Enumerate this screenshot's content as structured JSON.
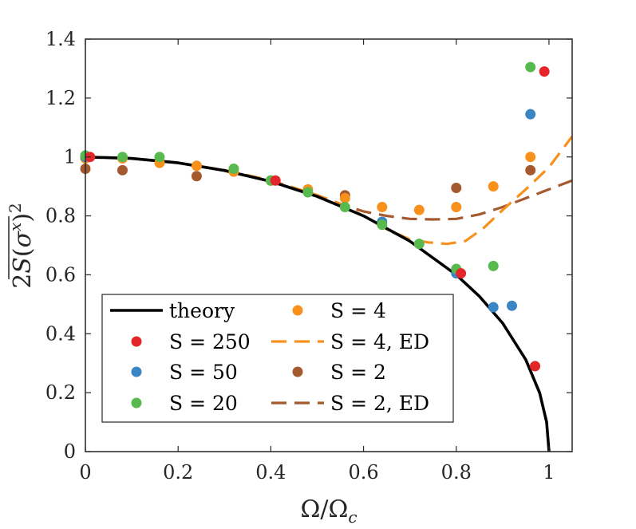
{
  "chart_data": {
    "type": "scatter",
    "xlabel": "Ω/Ω_c",
    "ylabel": "2S(σ^x)^2",
    "xlim": [
      0,
      1.05
    ],
    "ylim": [
      0,
      1.4
    ],
    "xticks": [
      0,
      0.2,
      0.4,
      0.6,
      0.8,
      1
    ],
    "xtick_labels": [
      "0",
      "0.2",
      "0.4",
      "0.6",
      "0.8",
      "1"
    ],
    "yticks": [
      0,
      0.2,
      0.4,
      0.6,
      0.8,
      1,
      1.2,
      1.4
    ],
    "ytick_labels": [
      "0",
      "0.2",
      "0.4",
      "0.6",
      "0.8",
      "1",
      "1.2",
      "1.4"
    ],
    "grid": false,
    "legend_position": "bottom-left",
    "series": [
      {
        "name": "theory",
        "label": "theory",
        "kind": "line",
        "style": "solid",
        "color": "#000000",
        "x": [
          0,
          0.1,
          0.2,
          0.3,
          0.4,
          0.5,
          0.6,
          0.7,
          0.8,
          0.85,
          0.9,
          0.95,
          0.98,
          0.995,
          1.0
        ],
        "y": [
          1,
          0.995,
          0.98,
          0.954,
          0.917,
          0.866,
          0.8,
          0.714,
          0.6,
          0.527,
          0.436,
          0.312,
          0.199,
          0.1,
          0
        ]
      },
      {
        "name": "S=250",
        "label": "S = 250",
        "kind": "scatter",
        "color": "#e4262a",
        "x": [
          0.01,
          0.41,
          0.81,
          0.97,
          0.99
        ],
        "y": [
          1.0,
          0.92,
          0.605,
          0.29,
          1.29
        ]
      },
      {
        "name": "S=50",
        "label": "S = 50",
        "kind": "scatter",
        "color": "#3a86c4",
        "x": [
          0.0,
          0.64,
          0.8,
          0.88,
          0.92,
          0.96
        ],
        "y": [
          1.0,
          0.78,
          0.605,
          0.49,
          0.495,
          1.145
        ]
      },
      {
        "name": "S=20",
        "label": "S = 20",
        "kind": "scatter",
        "color": "#58b94e",
        "x": [
          0.0,
          0.08,
          0.16,
          0.32,
          0.4,
          0.48,
          0.56,
          0.64,
          0.72,
          0.8,
          0.88,
          0.96
        ],
        "y": [
          1.005,
          1.0,
          1.0,
          0.96,
          0.92,
          0.88,
          0.83,
          0.77,
          0.705,
          0.62,
          0.63,
          1.305
        ]
      },
      {
        "name": "S=4",
        "label": "S = 4",
        "kind": "scatter",
        "color": "#f8901c",
        "x": [
          0.0,
          0.08,
          0.16,
          0.24,
          0.32,
          0.4,
          0.48,
          0.56,
          0.64,
          0.72,
          0.8,
          0.88,
          0.96
        ],
        "y": [
          0.995,
          0.995,
          0.98,
          0.97,
          0.95,
          0.92,
          0.89,
          0.86,
          0.83,
          0.82,
          0.83,
          0.9,
          1.0
        ]
      },
      {
        "name": "S=4,ED",
        "label": "S = 4, ED",
        "kind": "line",
        "style": "dashed",
        "color": "#f8901c",
        "x": [
          0,
          0.1,
          0.2,
          0.3,
          0.4,
          0.5,
          0.55,
          0.6,
          0.65,
          0.7,
          0.74,
          0.78,
          0.82,
          0.86,
          0.9,
          0.95,
          1.0,
          1.05
        ],
        "y": [
          1.0,
          0.995,
          0.98,
          0.955,
          0.92,
          0.87,
          0.84,
          0.8,
          0.755,
          0.72,
          0.71,
          0.705,
          0.715,
          0.76,
          0.82,
          0.89,
          0.965,
          1.07
        ]
      },
      {
        "name": "S=2",
        "label": "S = 2",
        "kind": "scatter",
        "color": "#a5592e",
        "x": [
          0.0,
          0.08,
          0.24,
          0.4,
          0.56,
          0.8,
          0.96
        ],
        "y": [
          0.96,
          0.955,
          0.935,
          0.92,
          0.87,
          0.895,
          0.955
        ]
      },
      {
        "name": "S=2,ED",
        "label": "S = 2, ED",
        "kind": "line",
        "style": "dashed",
        "color": "#a5592e",
        "x": [
          0,
          0.1,
          0.2,
          0.3,
          0.4,
          0.5,
          0.56,
          0.6,
          0.65,
          0.7,
          0.75,
          0.8,
          0.85,
          0.9,
          0.95,
          1.0,
          1.05
        ],
        "y": [
          1.0,
          0.995,
          0.98,
          0.955,
          0.92,
          0.87,
          0.835,
          0.815,
          0.8,
          0.79,
          0.788,
          0.79,
          0.805,
          0.83,
          0.86,
          0.89,
          0.92
        ]
      }
    ],
    "legend_order": [
      "theory",
      "S=4",
      "S=250",
      "S=4,ED",
      "S=50",
      "S=2",
      "S=20",
      "S=2,ED"
    ]
  }
}
